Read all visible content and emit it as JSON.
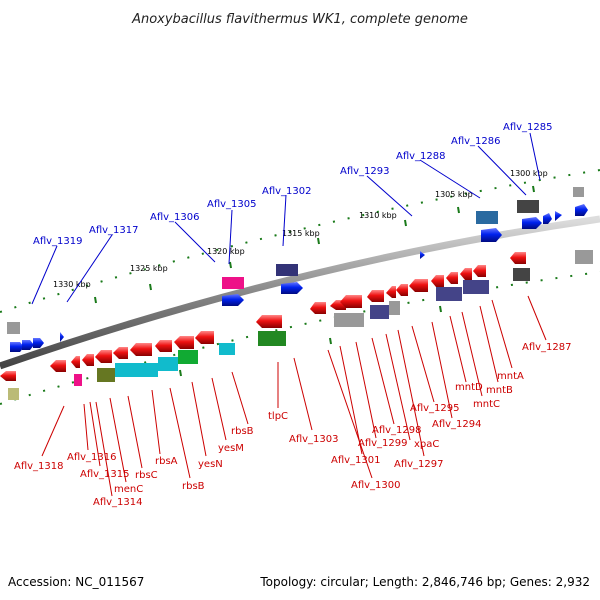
{
  "title": "Anoxybacillus flavithermus WK1, complete genome",
  "footer": {
    "accession": "Accession: NC_011567",
    "summary": "Topology: circular; Length: 2,846,746 bp; Genes: 2,932"
  },
  "kbp_labels": [
    "1300 kbp",
    "1305 kbp",
    "1310 kbp",
    "1315 kbp",
    "1320 kbp",
    "1325 kbp",
    "1330 kbp"
  ],
  "top_labels": [
    "Aflv_1285",
    "Aflv_1286",
    "Aflv_1288",
    "Aflv_1293",
    "Aflv_1302",
    "Aflv_1305",
    "Aflv_1306",
    "Aflv_1317",
    "Aflv_1319"
  ],
  "bottom_labels": [
    "Aflv_1287",
    "mntA",
    "mntB",
    "mntC",
    "mntD",
    "Aflv_1294",
    "Aflv_1295",
    "Aflv_1297",
    "xpaC",
    "Aflv_1298",
    "Aflv_1299",
    "Aflv_1301",
    "Aflv_1300",
    "Aflv_1303",
    "tlpC",
    "rbsB",
    "yesM",
    "yesN",
    "rbsB",
    "rbsA",
    "rbsC",
    "menC",
    "Aflv_1314",
    "Aflv_1315",
    "Aflv_1316",
    "Aflv_1318"
  ],
  "colors": {
    "forward_gene": "#0022ee",
    "reverse_gene": "#ee1111",
    "top_label": "#0000cc",
    "bottom_label": "#cc0000",
    "backbone": "#888888",
    "tick": "#1a7a1a"
  }
}
